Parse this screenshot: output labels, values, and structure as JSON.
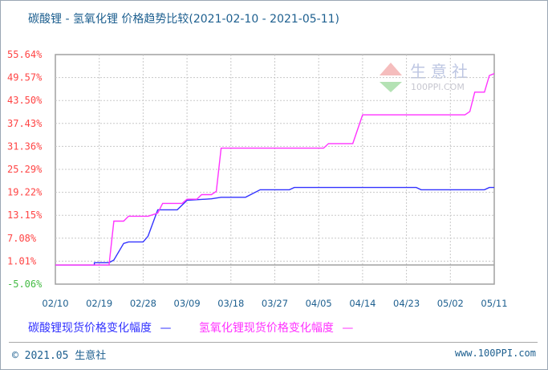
{
  "chart_data": {
    "type": "line",
    "title": "碳酸锂 - 氢氧化锂 价格趋势比较(2021-02-10 - 2021-05-11)",
    "xlim": [
      "2021-02-10",
      "2021-05-11"
    ],
    "ylim": [
      -5.06,
      55.64
    ],
    "y_ticks": [
      "55.64%",
      "49.57%",
      "43.50%",
      "37.43%",
      "31.36%",
      "25.29%",
      "19.22%",
      "13.15%",
      "7.08%",
      "1.01%",
      "-5.06%"
    ],
    "y_tick_values": [
      55.64,
      49.57,
      43.5,
      37.43,
      31.36,
      25.29,
      19.22,
      13.15,
      7.08,
      1.01,
      -5.06
    ],
    "x_ticks": [
      "02/10",
      "02/19",
      "02/28",
      "03/09",
      "03/18",
      "03/27",
      "04/05",
      "04/14",
      "04/23",
      "05/02",
      "05/11"
    ],
    "x_tick_dates": [
      "2021-02-10",
      "2021-02-19",
      "2021-02-28",
      "2021-03-09",
      "2021-03-18",
      "2021-03-27",
      "2021-04-05",
      "2021-04-14",
      "2021-04-23",
      "2021-05-02",
      "2021-05-11"
    ],
    "grid": true,
    "legend_position": "bottom",
    "series": [
      {
        "name": "碳酸锂现货价格变化幅度",
        "color": "#3333ff",
        "points": [
          [
            "2021-02-10",
            0
          ],
          [
            "2021-02-18",
            0
          ],
          [
            "2021-02-18",
            0.6
          ],
          [
            "2021-02-21",
            0.6
          ],
          [
            "2021-02-22",
            1.3
          ],
          [
            "2021-02-24",
            5.7
          ],
          [
            "2021-02-25",
            6.1
          ],
          [
            "2021-02-28",
            6.1
          ],
          [
            "2021-03-01",
            7.6
          ],
          [
            "2021-03-03",
            14.6
          ],
          [
            "2021-03-07",
            14.6
          ],
          [
            "2021-03-09",
            17.1
          ],
          [
            "2021-03-14",
            17.5
          ],
          [
            "2021-03-16",
            17.9
          ],
          [
            "2021-03-21",
            17.9
          ],
          [
            "2021-03-24",
            19.9
          ],
          [
            "2021-03-30",
            19.9
          ],
          [
            "2021-03-31",
            20.5
          ],
          [
            "2021-04-25",
            20.5
          ],
          [
            "2021-04-26",
            19.9
          ],
          [
            "2021-05-09",
            19.9
          ],
          [
            "2021-05-10",
            20.5
          ],
          [
            "2021-05-11",
            20.5
          ]
        ]
      },
      {
        "name": "氢氧化锂现货价格变化幅度",
        "color": "#ff33ff",
        "points": [
          [
            "2021-02-10",
            0
          ],
          [
            "2021-02-21",
            0
          ],
          [
            "2021-02-22",
            11.6
          ],
          [
            "2021-02-24",
            11.6
          ],
          [
            "2021-02-25",
            12.9
          ],
          [
            "2021-03-01",
            12.9
          ],
          [
            "2021-03-03",
            13.7
          ],
          [
            "2021-03-04",
            16.3
          ],
          [
            "2021-03-08",
            16.3
          ],
          [
            "2021-03-09",
            17.4
          ],
          [
            "2021-03-11",
            17.4
          ],
          [
            "2021-03-12",
            18.6
          ],
          [
            "2021-03-14",
            18.6
          ],
          [
            "2021-03-15",
            19.5
          ],
          [
            "2021-03-16",
            30.9
          ],
          [
            "2021-04-06",
            30.9
          ],
          [
            "2021-04-07",
            32.1
          ],
          [
            "2021-04-12",
            32.1
          ],
          [
            "2021-04-14",
            39.7
          ],
          [
            "2021-05-05",
            39.7
          ],
          [
            "2021-05-06",
            40.6
          ],
          [
            "2021-05-07",
            45.7
          ],
          [
            "2021-05-09",
            45.7
          ],
          [
            "2021-05-10",
            50.1
          ],
          [
            "2021-05-11",
            50.6
          ]
        ]
      }
    ]
  },
  "legend": {
    "dash": "—"
  },
  "watermark": {
    "name": "生意社",
    "site": "100PPI.COM"
  },
  "footer": {
    "copyright": "© 2021.05 生意社",
    "url": "www.100PPI.com"
  }
}
